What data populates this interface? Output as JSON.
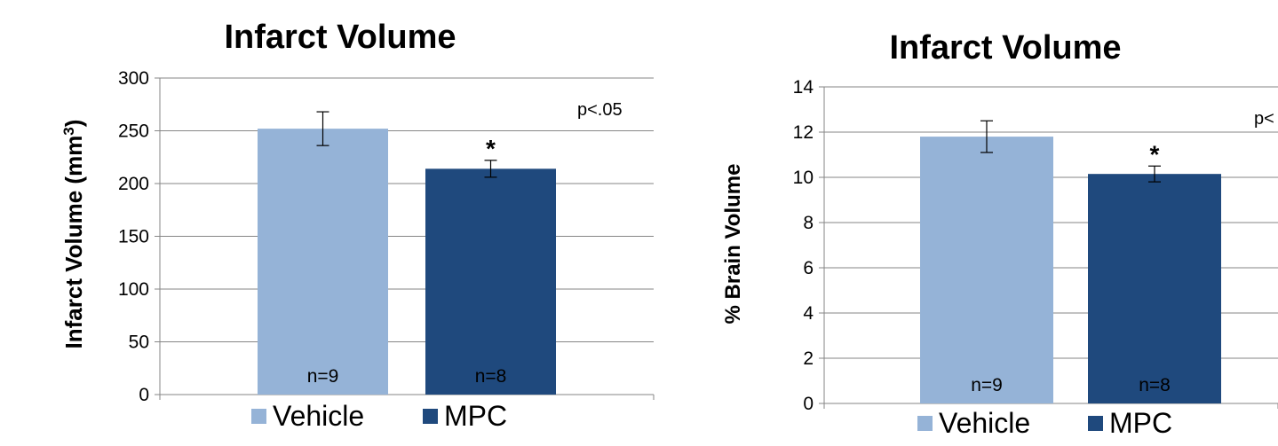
{
  "chart_data": [
    {
      "type": "bar",
      "title": "Infarct Volume",
      "ylabel": "Infarct Volume (mm",
      "ylabel_superscript": "3",
      "ylabel_suffix": ")",
      "ylim": [
        0,
        300
      ],
      "yticks": [
        "0",
        "50",
        "100",
        "150",
        "200",
        "250",
        "300"
      ],
      "grid": true,
      "legend": "bottom",
      "annotation": "p<.05",
      "series": [
        {
          "name": "Vehicle",
          "value": 252,
          "error": 16,
          "n_label": "n=9",
          "significance": "",
          "color": "#95b3d7"
        },
        {
          "name": "MPC",
          "value": 214,
          "error": 8,
          "n_label": "n=8",
          "significance": "*",
          "color": "#1f497d"
        }
      ]
    },
    {
      "type": "bar",
      "title": "Infarct Volume",
      "ylabel": "% Brain Volume",
      "ylim": [
        0,
        14
      ],
      "yticks": [
        "0",
        "2",
        "4",
        "6",
        "8",
        "10",
        "12",
        "14"
      ],
      "grid": true,
      "legend": "bottom",
      "annotation": "p<",
      "series": [
        {
          "name": "Vehicle",
          "value": 11.8,
          "error": 0.7,
          "n_label": "n=9",
          "significance": "",
          "color": "#95b3d7"
        },
        {
          "name": "MPC",
          "value": 10.15,
          "error": 0.35,
          "n_label": "n=8",
          "significance": "*",
          "color": "#1f497d"
        }
      ]
    }
  ]
}
